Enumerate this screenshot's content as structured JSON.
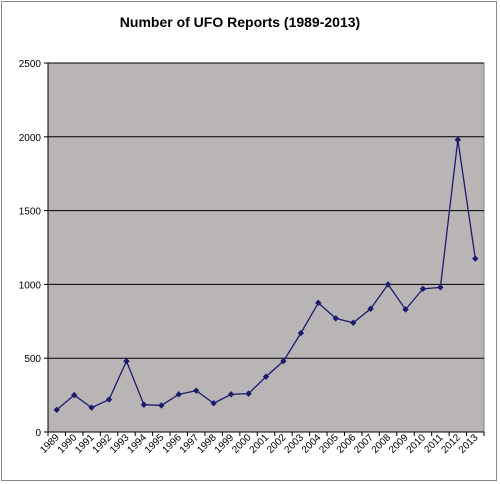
{
  "chart_data": {
    "type": "line",
    "title": "Number of UFO Reports (1989-2013)",
    "xlabel": "",
    "ylabel": "",
    "x": [
      "1989",
      "1990",
      "1991",
      "1992",
      "1993",
      "1994",
      "1995",
      "1996",
      "1997",
      "1998",
      "1999",
      "2000",
      "2001",
      "2002",
      "2003",
      "2004",
      "2005",
      "2006",
      "2007",
      "2008",
      "2009",
      "2010",
      "2011",
      "2012",
      "2013"
    ],
    "series": [
      {
        "values": [
          150,
          250,
          165,
          220,
          480,
          185,
          180,
          255,
          280,
          195,
          255,
          260,
          375,
          480,
          670,
          875,
          770,
          740,
          835,
          1000,
          830,
          970,
          980,
          1980,
          1175
        ]
      }
    ],
    "ylim": [
      0,
      2500
    ],
    "yticks": [
      "0",
      "500",
      "1000",
      "1500",
      "2000",
      "2500"
    ],
    "grid": true,
    "legend": "none",
    "colors": {
      "plot_background": "#b9b4b6",
      "line": "#1c1c6e",
      "gridline": "#000000"
    }
  }
}
